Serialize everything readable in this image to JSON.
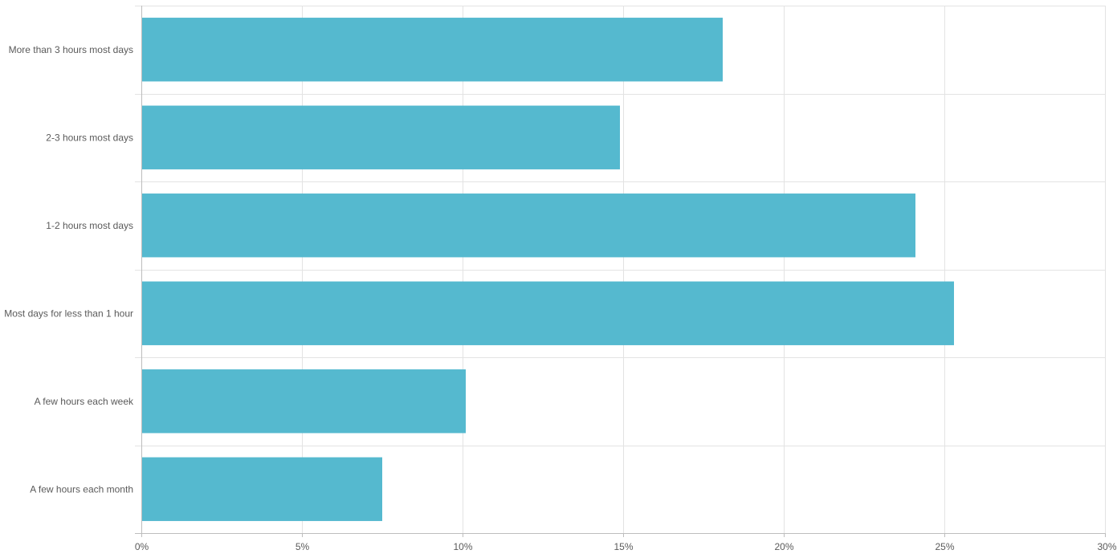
{
  "chart_data": {
    "type": "bar",
    "orientation": "horizontal",
    "title": "",
    "xlabel": "",
    "ylabel": "",
    "categories": [
      "More than 3 hours most days",
      "2-3 hours most days",
      "1-2 hours most days",
      "Most days for less than 1 hour",
      "A few hours each week",
      "A few hours each month"
    ],
    "values": [
      18.1,
      14.9,
      24.1,
      25.3,
      10.1,
      7.5
    ],
    "xlim": [
      0,
      30
    ],
    "x_ticks": [
      0,
      5,
      10,
      15,
      20,
      25,
      30
    ],
    "x_tick_labels": [
      "0%",
      "5%",
      "10%",
      "15%",
      "20%",
      "25%",
      "30%"
    ],
    "value_unit": "%",
    "grid": true,
    "legend": "none",
    "colors": {
      "bar": "#55b9cf",
      "grid": "#e3e3e3",
      "axis": "#bdbdbd",
      "text": "#5a5a5a"
    }
  }
}
